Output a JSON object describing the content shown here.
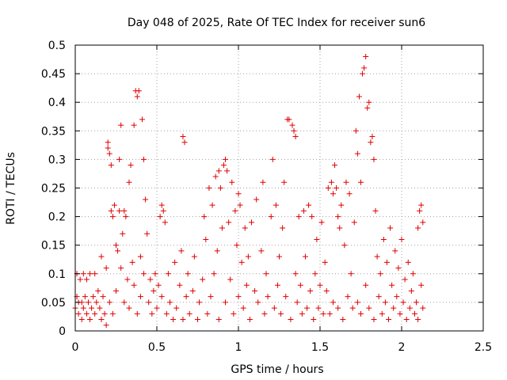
{
  "chart_data": {
    "type": "scatter",
    "title": "Day 048 of 2025, Rate Of TEC Index for receiver sun6",
    "xlabel": "GPS time / hours",
    "ylabel": "ROTI / TECUs",
    "xlim": [
      0,
      2.5
    ],
    "ylim": [
      0,
      0.5
    ],
    "grid": true,
    "marker": "plus",
    "color": "#e00000",
    "xticks": [
      0,
      0.5,
      1,
      1.5,
      2,
      2.5
    ],
    "xtick_labels": [
      "0",
      "0.5",
      "1",
      "1.5",
      "2",
      "2.5"
    ],
    "yticks": [
      0,
      0.05,
      0.1,
      0.15,
      0.2,
      0.25,
      0.3,
      0.35,
      0.4,
      0.45,
      0.5
    ],
    "ytick_labels": [
      "0",
      "0.05",
      "0.1",
      "0.15",
      "0.2",
      "0.25",
      "0.3",
      "0.35",
      "0.4",
      "0.45",
      "0.5"
    ],
    "series": [
      {
        "name": "ROTI",
        "points": [
          [
            0.0,
            0.04
          ],
          [
            0.01,
            0.06
          ],
          [
            0.01,
            0.1
          ],
          [
            0.02,
            0.05
          ],
          [
            0.02,
            0.03
          ],
          [
            0.03,
            0.09
          ],
          [
            0.04,
            0.05
          ],
          [
            0.04,
            0.02
          ],
          [
            0.05,
            0.1
          ],
          [
            0.05,
            0.04
          ],
          [
            0.06,
            0.06
          ],
          [
            0.07,
            0.03
          ],
          [
            0.07,
            0.09
          ],
          [
            0.08,
            0.05
          ],
          [
            0.09,
            0.1
          ],
          [
            0.09,
            0.02
          ],
          [
            0.1,
            0.04
          ],
          [
            0.11,
            0.06
          ],
          [
            0.12,
            0.03
          ],
          [
            0.12,
            0.1
          ],
          [
            0.13,
            0.05
          ],
          [
            0.14,
            0.07
          ],
          [
            0.15,
            0.04
          ],
          [
            0.16,
            0.02
          ],
          [
            0.16,
            0.13
          ],
          [
            0.17,
            0.06
          ],
          [
            0.18,
            0.03
          ],
          [
            0.19,
            0.01
          ],
          [
            0.19,
            0.11
          ],
          [
            0.2,
            0.33
          ],
          [
            0.2,
            0.32
          ],
          [
            0.21,
            0.31
          ],
          [
            0.21,
            0.05
          ],
          [
            0.22,
            0.29
          ],
          [
            0.22,
            0.21
          ],
          [
            0.23,
            0.2
          ],
          [
            0.23,
            0.03
          ],
          [
            0.24,
            0.22
          ],
          [
            0.25,
            0.15
          ],
          [
            0.25,
            0.07
          ],
          [
            0.26,
            0.14
          ],
          [
            0.27,
            0.21
          ],
          [
            0.27,
            0.3
          ],
          [
            0.28,
            0.36
          ],
          [
            0.28,
            0.11
          ],
          [
            0.29,
            0.17
          ],
          [
            0.3,
            0.21
          ],
          [
            0.3,
            0.05
          ],
          [
            0.31,
            0.2
          ],
          [
            0.32,
            0.09
          ],
          [
            0.33,
            0.26
          ],
          [
            0.33,
            0.04
          ],
          [
            0.34,
            0.29
          ],
          [
            0.35,
            0.12
          ],
          [
            0.36,
            0.36
          ],
          [
            0.36,
            0.08
          ],
          [
            0.37,
            0.42
          ],
          [
            0.38,
            0.41
          ],
          [
            0.38,
            0.03
          ],
          [
            0.39,
            0.42
          ],
          [
            0.4,
            0.13
          ],
          [
            0.4,
            0.06
          ],
          [
            0.41,
            0.37
          ],
          [
            0.42,
            0.3
          ],
          [
            0.42,
            0.1
          ],
          [
            0.43,
            0.23
          ],
          [
            0.44,
            0.17
          ],
          [
            0.45,
            0.05
          ],
          [
            0.46,
            0.09
          ],
          [
            0.47,
            0.03
          ],
          [
            0.48,
            0.07
          ],
          [
            0.49,
            0.1
          ],
          [
            0.5,
            0.04
          ],
          [
            0.51,
            0.08
          ],
          [
            0.52,
            0.2
          ],
          [
            0.53,
            0.22
          ],
          [
            0.53,
            0.06
          ],
          [
            0.54,
            0.21
          ],
          [
            0.55,
            0.19
          ],
          [
            0.56,
            0.03
          ],
          [
            0.57,
            0.1
          ],
          [
            0.58,
            0.05
          ],
          [
            0.6,
            0.02
          ],
          [
            0.61,
            0.12
          ],
          [
            0.62,
            0.04
          ],
          [
            0.64,
            0.08
          ],
          [
            0.65,
            0.14
          ],
          [
            0.66,
            0.34
          ],
          [
            0.66,
            0.02
          ],
          [
            0.67,
            0.33
          ],
          [
            0.68,
            0.06
          ],
          [
            0.69,
            0.1
          ],
          [
            0.7,
            0.03
          ],
          [
            0.72,
            0.07
          ],
          [
            0.73,
            0.13
          ],
          [
            0.75,
            0.02
          ],
          [
            0.76,
            0.05
          ],
          [
            0.78,
            0.09
          ],
          [
            0.79,
            0.2
          ],
          [
            0.8,
            0.16
          ],
          [
            0.81,
            0.03
          ],
          [
            0.82,
            0.25
          ],
          [
            0.83,
            0.06
          ],
          [
            0.84,
            0.22
          ],
          [
            0.85,
            0.1
          ],
          [
            0.86,
            0.27
          ],
          [
            0.87,
            0.14
          ],
          [
            0.88,
            0.28
          ],
          [
            0.88,
            0.02
          ],
          [
            0.89,
            0.25
          ],
          [
            0.9,
            0.18
          ],
          [
            0.91,
            0.29
          ],
          [
            0.92,
            0.3
          ],
          [
            0.92,
            0.05
          ],
          [
            0.93,
            0.28
          ],
          [
            0.94,
            0.19
          ],
          [
            0.95,
            0.09
          ],
          [
            0.96,
            0.26
          ],
          [
            0.97,
            0.03
          ],
          [
            0.98,
            0.21
          ],
          [
            0.99,
            0.15
          ],
          [
            1.0,
            0.24
          ],
          [
            1.0,
            0.06
          ],
          [
            1.01,
            0.22
          ],
          [
            1.02,
            0.12
          ],
          [
            1.03,
            0.04
          ],
          [
            1.04,
            0.18
          ],
          [
            1.05,
            0.08
          ],
          [
            1.06,
            0.13
          ],
          [
            1.07,
            0.02
          ],
          [
            1.08,
            0.19
          ],
          [
            1.1,
            0.07
          ],
          [
            1.11,
            0.23
          ],
          [
            1.12,
            0.05
          ],
          [
            1.14,
            0.14
          ],
          [
            1.15,
            0.26
          ],
          [
            1.16,
            0.03
          ],
          [
            1.17,
            0.1
          ],
          [
            1.18,
            0.06
          ],
          [
            1.2,
            0.2
          ],
          [
            1.21,
            0.3
          ],
          [
            1.22,
            0.04
          ],
          [
            1.23,
            0.22
          ],
          [
            1.24,
            0.08
          ],
          [
            1.25,
            0.13
          ],
          [
            1.26,
            0.03
          ],
          [
            1.27,
            0.18
          ],
          [
            1.28,
            0.26
          ],
          [
            1.29,
            0.06
          ],
          [
            1.3,
            0.37
          ],
          [
            1.31,
            0.37
          ],
          [
            1.32,
            0.02
          ],
          [
            1.33,
            0.36
          ],
          [
            1.34,
            0.35
          ],
          [
            1.35,
            0.34
          ],
          [
            1.35,
            0.1
          ],
          [
            1.36,
            0.05
          ],
          [
            1.37,
            0.2
          ],
          [
            1.38,
            0.08
          ],
          [
            1.39,
            0.03
          ],
          [
            1.4,
            0.21
          ],
          [
            1.41,
            0.13
          ],
          [
            1.42,
            0.04
          ],
          [
            1.43,
            0.22
          ],
          [
            1.44,
            0.07
          ],
          [
            1.45,
            0.2
          ],
          [
            1.46,
            0.02
          ],
          [
            1.47,
            0.1
          ],
          [
            1.48,
            0.16
          ],
          [
            1.49,
            0.04
          ],
          [
            1.5,
            0.08
          ],
          [
            1.51,
            0.19
          ],
          [
            1.52,
            0.03
          ],
          [
            1.53,
            0.12
          ],
          [
            1.54,
            0.07
          ],
          [
            1.55,
            0.25
          ],
          [
            1.56,
            0.03
          ],
          [
            1.57,
            0.26
          ],
          [
            1.58,
            0.24
          ],
          [
            1.58,
            0.05
          ],
          [
            1.59,
            0.29
          ],
          [
            1.6,
            0.25
          ],
          [
            1.61,
            0.2
          ],
          [
            1.61,
            0.04
          ],
          [
            1.62,
            0.18
          ],
          [
            1.63,
            0.22
          ],
          [
            1.64,
            0.02
          ],
          [
            1.65,
            0.15
          ],
          [
            1.66,
            0.26
          ],
          [
            1.67,
            0.06
          ],
          [
            1.68,
            0.24
          ],
          [
            1.69,
            0.1
          ],
          [
            1.7,
            0.04
          ],
          [
            1.71,
            0.19
          ],
          [
            1.72,
            0.35
          ],
          [
            1.73,
            0.31
          ],
          [
            1.73,
            0.05
          ],
          [
            1.74,
            0.41
          ],
          [
            1.75,
            0.26
          ],
          [
            1.75,
            0.03
          ],
          [
            1.76,
            0.45
          ],
          [
            1.77,
            0.46
          ],
          [
            1.78,
            0.48
          ],
          [
            1.78,
            0.08
          ],
          [
            1.79,
            0.39
          ],
          [
            1.8,
            0.4
          ],
          [
            1.8,
            0.04
          ],
          [
            1.81,
            0.33
          ],
          [
            1.82,
            0.34
          ],
          [
            1.83,
            0.3
          ],
          [
            1.83,
            0.02
          ],
          [
            1.84,
            0.21
          ],
          [
            1.85,
            0.13
          ],
          [
            1.86,
            0.06
          ],
          [
            1.87,
            0.1
          ],
          [
            1.88,
            0.03
          ],
          [
            1.89,
            0.16
          ],
          [
            1.9,
            0.05
          ],
          [
            1.91,
            0.12
          ],
          [
            1.92,
            0.02
          ],
          [
            1.93,
            0.18
          ],
          [
            1.94,
            0.08
          ],
          [
            1.95,
            0.04
          ],
          [
            1.96,
            0.14
          ],
          [
            1.97,
            0.06
          ],
          [
            1.98,
            0.11
          ],
          [
            1.99,
            0.03
          ],
          [
            2.0,
            0.16
          ],
          [
            2.01,
            0.05
          ],
          [
            2.02,
            0.09
          ],
          [
            2.03,
            0.02
          ],
          [
            2.04,
            0.12
          ],
          [
            2.05,
            0.04
          ],
          [
            2.06,
            0.07
          ],
          [
            2.07,
            0.1
          ],
          [
            2.08,
            0.03
          ],
          [
            2.09,
            0.05
          ],
          [
            2.1,
            0.18
          ],
          [
            2.1,
            0.02
          ],
          [
            2.11,
            0.21
          ],
          [
            2.12,
            0.22
          ],
          [
            2.12,
            0.08
          ],
          [
            2.13,
            0.19
          ],
          [
            2.13,
            0.04
          ]
        ]
      }
    ]
  }
}
